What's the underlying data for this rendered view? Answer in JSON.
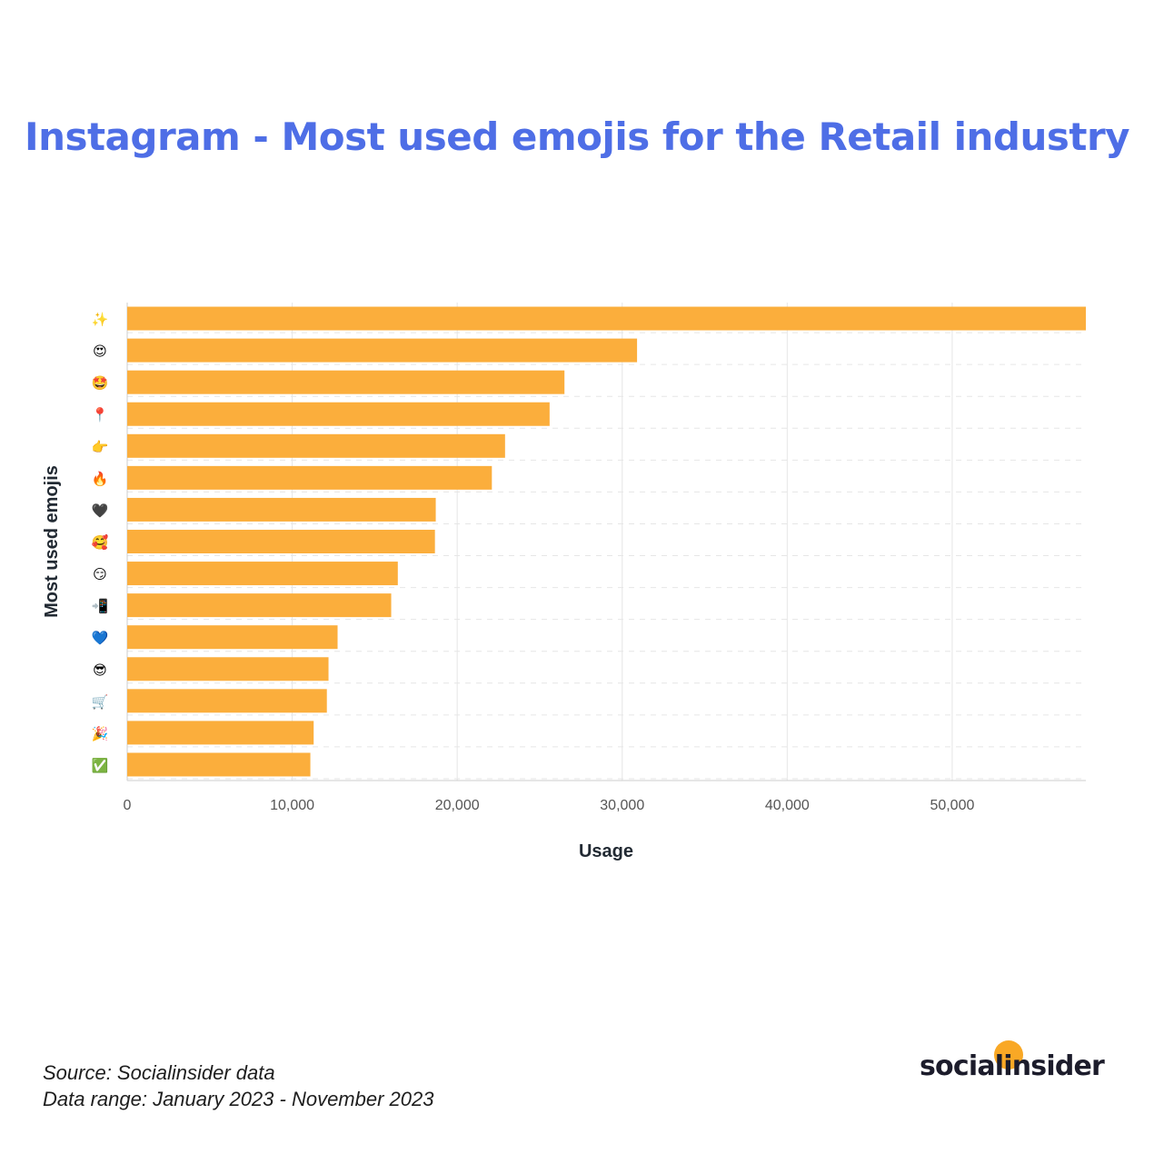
{
  "title": "Instagram - Most used emojis for the Retail industry",
  "footer": {
    "source": "Source: Socialinsider data",
    "range": "Data range: January 2023 - November 2023"
  },
  "brand": {
    "name": "socialinsider",
    "accent": "#f9a825"
  },
  "colors": {
    "bar": "#fbae3c",
    "title": "#4e6ee6",
    "grid": "#e6e6e6"
  },
  "chart_data": {
    "type": "bar",
    "orientation": "horizontal",
    "categories": [
      "✨",
      "😍",
      "🤩",
      "📍",
      "👉",
      "🔥",
      "🖤",
      "🥰",
      "😏",
      "📲",
      "💙",
      "😎",
      "🛒",
      "🎉",
      "✅"
    ],
    "values": [
      58100,
      30900,
      26500,
      25600,
      22900,
      22100,
      18700,
      18650,
      16400,
      16000,
      12750,
      12200,
      12100,
      11300,
      11100
    ],
    "xlabel": "Usage",
    "ylabel": "Most used emojis",
    "xlim": [
      0,
      58100
    ],
    "xticks": [
      0,
      10000,
      20000,
      30000,
      40000,
      50000
    ],
    "xtick_labels": [
      "0",
      "10,000",
      "20,000",
      "30,000",
      "40,000",
      "50,000"
    ],
    "grid": true
  }
}
